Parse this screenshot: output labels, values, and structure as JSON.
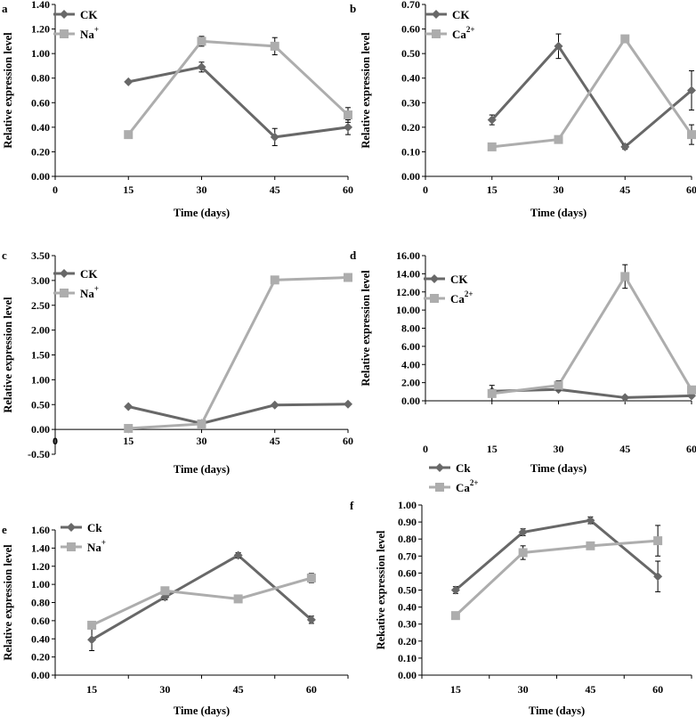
{
  "colors": {
    "ck": "#686868",
    "treatment": "#adadad",
    "axis": "#000000"
  },
  "chart_data": [
    {
      "panel": "a",
      "type": "line",
      "x": [
        15,
        30,
        45,
        60
      ],
      "x_ticks": [
        "0",
        "15",
        "30",
        "45",
        "60"
      ],
      "xlim": [
        0,
        60
      ],
      "ylim": [
        0,
        1.4
      ],
      "y_ticks": [
        "0.00",
        "0.20",
        "0.40",
        "0.60",
        "0.80",
        "1.00",
        "1.20",
        "1.40"
      ],
      "xlabel": "Time (days)",
      "ylabel": "Relative expression level",
      "series": [
        {
          "name": "CK",
          "sup": "",
          "values": [
            0.77,
            0.89,
            0.32,
            0.4
          ],
          "errors": [
            0.01,
            0.04,
            0.07,
            0.06
          ]
        },
        {
          "name": "Na",
          "sup": "+",
          "values": [
            0.34,
            1.1,
            1.06,
            0.5
          ],
          "errors": [
            0.01,
            0.04,
            0.07,
            0.06
          ]
        }
      ]
    },
    {
      "panel": "b",
      "type": "line",
      "x": [
        15,
        30,
        45,
        60
      ],
      "x_ticks": [
        "0",
        "15",
        "30",
        "45",
        "60"
      ],
      "xlim": [
        0,
        60
      ],
      "ylim": [
        0,
        0.7
      ],
      "y_ticks": [
        "0.00",
        "0.10",
        "0.20",
        "0.30",
        "0.40",
        "0.50",
        "0.60",
        "0.70"
      ],
      "xlabel": "Time (days)",
      "ylabel": "Relative expression level",
      "series": [
        {
          "name": "CK",
          "sup": "",
          "values": [
            0.23,
            0.53,
            0.12,
            0.35
          ],
          "errors": [
            0.02,
            0.05,
            0.01,
            0.08
          ]
        },
        {
          "name": "Ca",
          "sup": "2+",
          "values": [
            0.12,
            0.15,
            0.56,
            0.17
          ],
          "errors": [
            0.005,
            0.005,
            0.005,
            0.04
          ]
        }
      ]
    },
    {
      "panel": "c",
      "type": "line",
      "x": [
        15,
        30,
        45,
        60
      ],
      "x_ticks": [
        "0",
        "15",
        "30",
        "45",
        "60"
      ],
      "xlim": [
        0,
        60
      ],
      "ylim": [
        -0.5,
        3.5
      ],
      "y_ticks": [
        "-0.50",
        "0.00",
        "0.50",
        "1.00",
        "1.50",
        "2.00",
        "2.50",
        "3.00",
        "3.50"
      ],
      "xlabel": "Time (days)",
      "ylabel": "Relative expression level",
      "series": [
        {
          "name": "CK",
          "sup": "",
          "values": [
            0.46,
            0.12,
            0.49,
            0.51
          ],
          "errors": [
            0.01,
            0.01,
            0.01,
            0.01
          ]
        },
        {
          "name": "Na",
          "sup": "+",
          "values": [
            0.02,
            0.11,
            3.01,
            3.06
          ],
          "errors": [
            0.01,
            0.01,
            0.02,
            0.02
          ]
        }
      ]
    },
    {
      "panel": "d",
      "type": "line",
      "x": [
        15,
        30,
        45,
        60
      ],
      "x_ticks": [
        "0",
        "15",
        "30",
        "45",
        "60"
      ],
      "xlim": [
        0,
        60
      ],
      "ylim": [
        0,
        16
      ],
      "y_ticks": [
        "0.00",
        "2.00",
        "4.00",
        "6.00",
        "8.00",
        "10.00",
        "12.00",
        "14.00",
        "16.00"
      ],
      "xlabel": "Time (days)",
      "ylabel": "Relative expression level",
      "series": [
        {
          "name": "CK",
          "sup": "",
          "values": [
            1.05,
            1.25,
            0.35,
            0.55
          ],
          "errors": [
            0.1,
            0.1,
            0.05,
            0.05
          ]
        },
        {
          "name": "Ca",
          "sup": "2+",
          "values": [
            0.8,
            1.7,
            13.7,
            1.2
          ],
          "errors": [
            0.9,
            0.5,
            1.3,
            0.1
          ]
        }
      ]
    },
    {
      "panel": "e",
      "type": "line",
      "x": [
        15,
        30,
        45,
        60
      ],
      "x_ticks": [
        "15",
        "30",
        "45",
        "60"
      ],
      "xlim": [
        15,
        60
      ],
      "ylim": [
        0,
        1.6
      ],
      "y_ticks": [
        "0.00",
        "0.20",
        "0.40",
        "0.60",
        "0.80",
        "1.00",
        "1.20",
        "1.40",
        "1.60"
      ],
      "xlabel": "Time (days)",
      "ylabel": "Relative expression level",
      "series": [
        {
          "name": "Ck",
          "sup": "",
          "values": [
            0.39,
            0.86,
            1.32,
            0.61
          ],
          "errors": [
            0.12,
            0.03,
            0.03,
            0.04
          ]
        },
        {
          "name": "Na",
          "sup": "+",
          "values": [
            0.55,
            0.93,
            0.84,
            1.07
          ],
          "errors": [
            0.04,
            0.04,
            0.03,
            0.05
          ]
        }
      ]
    },
    {
      "panel": "f",
      "type": "line",
      "x": [
        15,
        30,
        45,
        60
      ],
      "x_ticks": [
        "15",
        "30",
        "45",
        "60"
      ],
      "xlim": [
        15,
        60
      ],
      "ylim": [
        0,
        1.0
      ],
      "y_ticks": [
        "0.00",
        "0.10",
        "0.20",
        "0.30",
        "0.40",
        "0.50",
        "0.60",
        "0.70",
        "0.80",
        "0.90",
        "1.00"
      ],
      "xlabel": "Time (days)",
      "ylabel": "Rekative expression level",
      "series": [
        {
          "name": "Ck",
          "sup": "",
          "values": [
            0.5,
            0.84,
            0.91,
            0.58
          ],
          "errors": [
            0.02,
            0.02,
            0.02,
            0.09
          ]
        },
        {
          "name": "Ca",
          "sup": "2+",
          "values": [
            0.35,
            0.72,
            0.76,
            0.79
          ],
          "errors": [
            0.005,
            0.04,
            0.01,
            0.09
          ]
        }
      ]
    }
  ]
}
